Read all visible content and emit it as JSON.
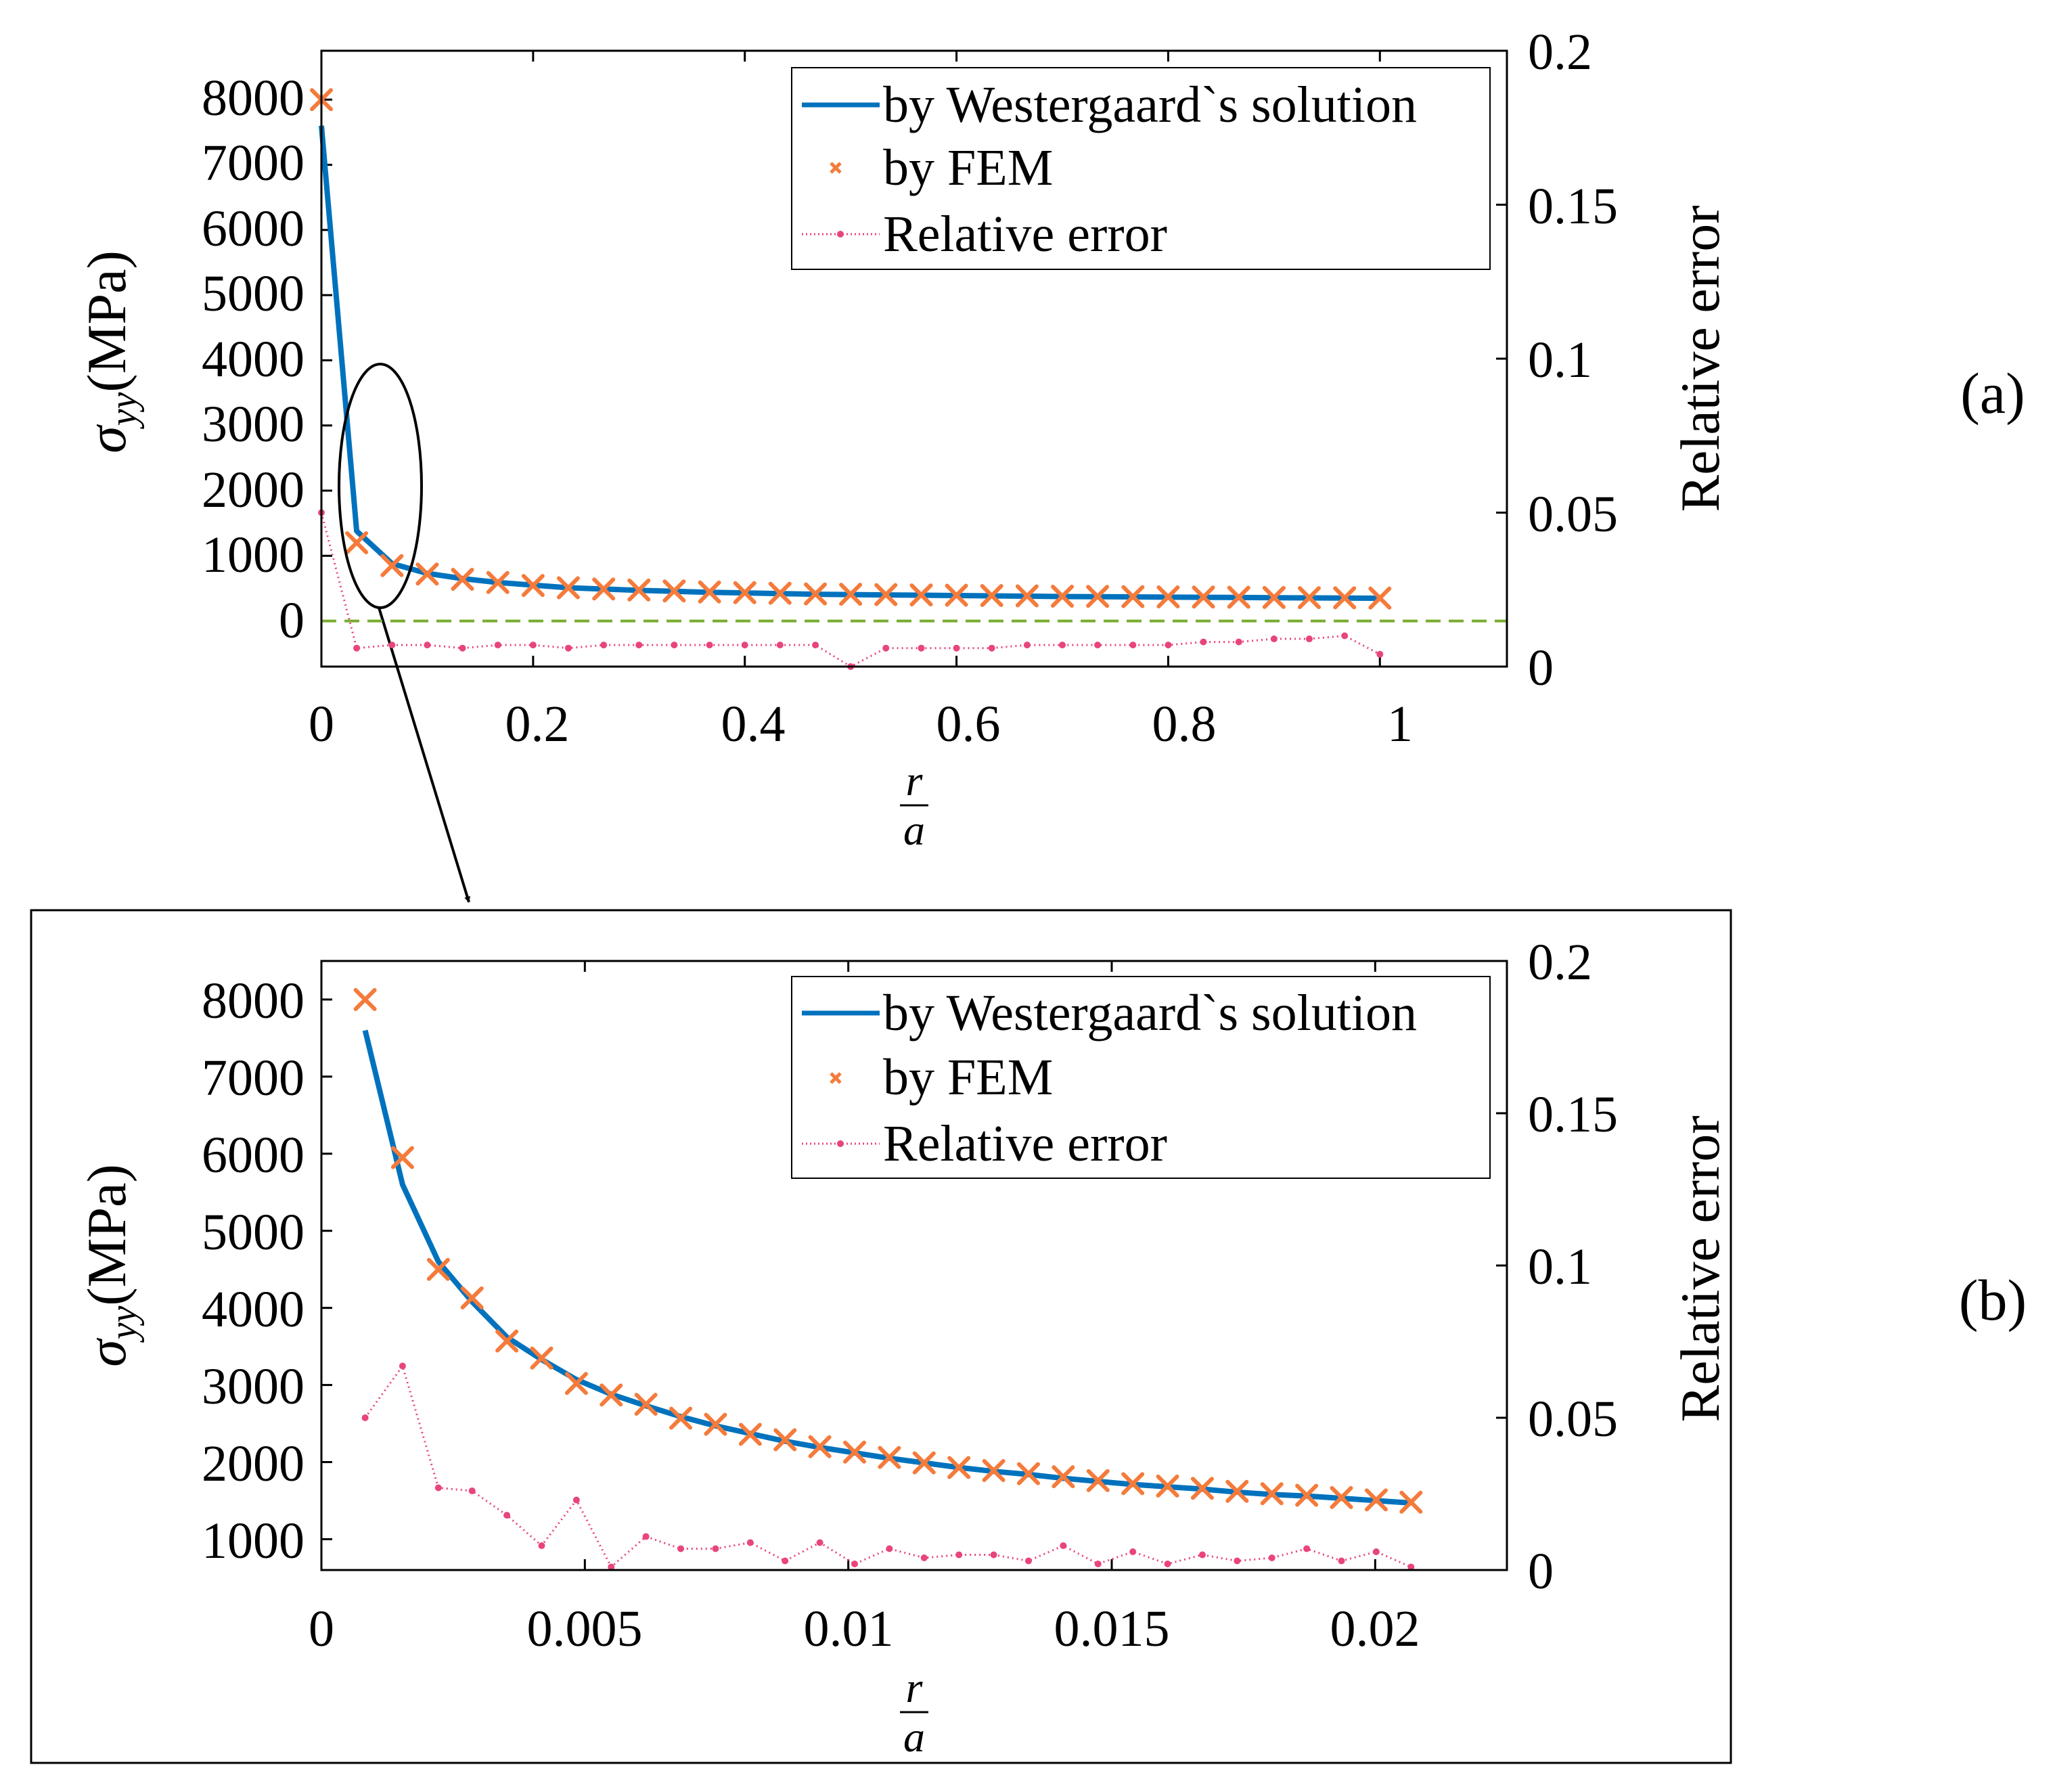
{
  "colors": {
    "analytic": "#0072BD",
    "fem": "#F47B3B",
    "error": "#E8457A",
    "zero": "#77AC30",
    "axis": "#000000"
  },
  "callout": {
    "shape": "ellipse",
    "meaning": "region near crack tip enlarged in panel (b)"
  },
  "chart_data": [
    {
      "type": "line",
      "panel": "(a)",
      "xlabel_num": "r",
      "xlabel_den": "a",
      "ylabel_greek": "σ",
      "ylabel_sub": "yy",
      "ylabel_unit": "(MPa)",
      "y2label": "Relative error",
      "xlim": [
        0,
        1.12
      ],
      "ylim": [
        -700,
        8750
      ],
      "y2lim": [
        0,
        0.2
      ],
      "xticks": [
        0,
        0.2,
        0.4,
        0.6,
        0.8,
        1
      ],
      "xtick_labels": [
        "0",
        "0.2",
        "0.4",
        "0.6",
        "0.8",
        "1"
      ],
      "yticks": [
        0,
        1000,
        2000,
        3000,
        4000,
        5000,
        6000,
        7000,
        8000
      ],
      "ytick_labels": [
        "0",
        "1000",
        "2000",
        "3000",
        "4000",
        "5000",
        "6000",
        "7000",
        "8000"
      ],
      "y2ticks": [
        0,
        0.05,
        0.1,
        0.15,
        0.2
      ],
      "y2tick_labels": [
        "0",
        "0.05",
        "0.1",
        "0.15",
        "0.2"
      ],
      "legend": {
        "position": "top-right",
        "entries": [
          "by Westergaard`s solution",
          "by FEM",
          "Relative error"
        ]
      },
      "zero_line": 0,
      "x": [
        0,
        0.0333,
        0.0667,
        0.1,
        0.1333,
        0.1667,
        0.2,
        0.2333,
        0.2667,
        0.3,
        0.3333,
        0.3667,
        0.4,
        0.4333,
        0.4667,
        0.5,
        0.5333,
        0.5667,
        0.6,
        0.6333,
        0.6667,
        0.7,
        0.7333,
        0.7667,
        0.8,
        0.8333,
        0.8667,
        0.9,
        0.9333,
        0.9667,
        1
      ],
      "series": [
        {
          "name": "by Westergaard`s solution",
          "style": "line",
          "values": [
            7600,
            1380,
            880,
            730,
            650,
            590,
            550,
            510,
            490,
            470,
            455,
            440,
            430,
            420,
            410,
            405,
            400,
            395,
            390,
            385,
            380,
            375,
            372,
            369,
            366,
            363,
            360,
            357,
            354,
            351,
            348
          ]
        },
        {
          "name": "by FEM",
          "style": "markers-x",
          "values": [
            8000,
            1200,
            850,
            720,
            640,
            590,
            545,
            510,
            490,
            475,
            460,
            445,
            435,
            425,
            415,
            410,
            405,
            400,
            395,
            390,
            385,
            380,
            377,
            374,
            370,
            367,
            364,
            361,
            358,
            355,
            352
          ]
        },
        {
          "name": "Relative error",
          "style": "dotted-line",
          "axis": "right",
          "values": [
            0.05,
            0.006,
            0.007,
            0.007,
            0.006,
            0.007,
            0.007,
            0.006,
            0.007,
            0.007,
            0.007,
            0.007,
            0.007,
            0.007,
            0.007,
            0,
            0.006,
            0.006,
            0.006,
            0.006,
            0.007,
            0.007,
            0.007,
            0.007,
            0.007,
            0.008,
            0.008,
            0.009,
            0.009,
            0.01,
            0.004
          ]
        }
      ]
    },
    {
      "type": "line",
      "panel": "(b)",
      "xlabel_num": "r",
      "xlabel_den": "a",
      "ylabel_greek": "σ",
      "ylabel_sub": "yy",
      "ylabel_unit": "(MPa)",
      "y2label": "Relative error",
      "xlim": [
        0,
        0.0225
      ],
      "ylim": [
        600,
        8500
      ],
      "y2lim": [
        0,
        0.2
      ],
      "xticks": [
        0,
        0.005,
        0.01,
        0.015,
        0.02
      ],
      "xtick_labels": [
        "0",
        "0.005",
        "0.01",
        "0.015",
        "0.02"
      ],
      "yticks": [
        1000,
        2000,
        3000,
        4000,
        5000,
        6000,
        7000,
        8000
      ],
      "ytick_labels": [
        "1000",
        "2000",
        "3000",
        "4000",
        "5000",
        "6000",
        "7000",
        "8000"
      ],
      "y2ticks": [
        0,
        0.05,
        0.1,
        0.15,
        0.2
      ],
      "y2tick_labels": [
        "0",
        "0.05",
        "0.1",
        "0.15",
        "0.2"
      ],
      "legend": {
        "position": "top-right",
        "entries": [
          "by Westergaard`s solution",
          "by FEM",
          "Relative error"
        ]
      },
      "x": [
        0.00083,
        0.00154,
        0.00222,
        0.00286,
        0.00352,
        0.00418,
        0.00484,
        0.0055,
        0.00616,
        0.00682,
        0.00748,
        0.00814,
        0.0088,
        0.00946,
        0.01012,
        0.01078,
        0.01144,
        0.0121,
        0.01276,
        0.01342,
        0.01408,
        0.01474,
        0.0154,
        0.01606,
        0.01672,
        0.01738,
        0.01804,
        0.0187,
        0.01936,
        0.02002,
        0.02068
      ],
      "series": [
        {
          "name": "by Westergaard`s solution",
          "style": "line",
          "values": [
            7600,
            5600,
            4600,
            4080,
            3620,
            3330,
            3070,
            2880,
            2730,
            2590,
            2470,
            2370,
            2270,
            2190,
            2120,
            2050,
            1990,
            1930,
            1880,
            1840,
            1790,
            1750,
            1710,
            1680,
            1650,
            1610,
            1580,
            1560,
            1530,
            1500,
            1470
          ]
        },
        {
          "name": "by FEM",
          "style": "markers-x",
          "values": [
            8000,
            5950,
            4500,
            4130,
            3570,
            3350,
            3020,
            2870,
            2750,
            2570,
            2490,
            2360,
            2290,
            2200,
            2130,
            2060,
            1990,
            1930,
            1890,
            1850,
            1810,
            1760,
            1720,
            1690,
            1660,
            1620,
            1590,
            1570,
            1540,
            1510,
            1480
          ]
        },
        {
          "name": "Relative error",
          "style": "dotted-line",
          "axis": "right",
          "values": [
            0.05,
            0.067,
            0.027,
            0.026,
            0.018,
            0.008,
            0.023,
            0.001,
            0.011,
            0.007,
            0.007,
            0.009,
            0.003,
            0.009,
            0.002,
            0.007,
            0.004,
            0.005,
            0.005,
            0.003,
            0.008,
            0.002,
            0.006,
            0.002,
            0.005,
            0.003,
            0.004,
            0.007,
            0.003,
            0.006,
            0.001
          ]
        }
      ]
    }
  ]
}
